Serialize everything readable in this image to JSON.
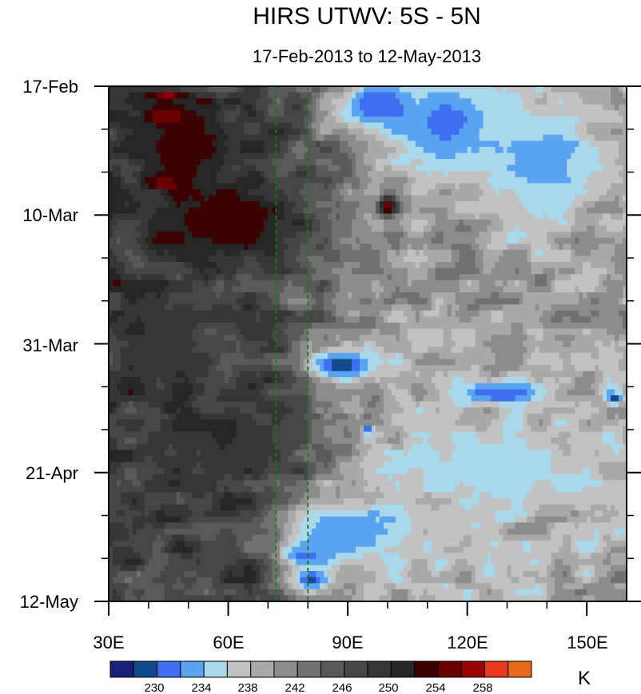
{
  "chart_data": {
    "type": "heatmap",
    "title": "HIRS UTWV: 5S - 5N",
    "subtitle": "17-Feb-2013 to 12-May-2013",
    "xlim": [
      30,
      160
    ],
    "x_ticks": [
      {
        "value": 30,
        "label": "30E"
      },
      {
        "value": 60,
        "label": "60E"
      },
      {
        "value": 90,
        "label": "90E"
      },
      {
        "value": 120,
        "label": "120E"
      },
      {
        "value": 150,
        "label": "150E"
      }
    ],
    "x_minor_ticks": [
      40,
      50,
      70,
      80,
      100,
      110,
      130,
      140
    ],
    "y_range_days": [
      0,
      84
    ],
    "y_ticks": [
      {
        "day": 0,
        "label": "17-Feb"
      },
      {
        "day": 21,
        "label": "10-Mar"
      },
      {
        "day": 42,
        "label": "31-Mar"
      },
      {
        "day": 63,
        "label": "21-Apr"
      },
      {
        "day": 84,
        "label": "12-May"
      }
    ],
    "y_minor_ticks": [
      7,
      14,
      28,
      35,
      49,
      56,
      70,
      77
    ],
    "reference_lines_lon": [
      72,
      80
    ],
    "colorbar": {
      "unit": "K",
      "colors": [
        "#1a1f7a",
        "#124a8c",
        "#3f6ff0",
        "#5aa3f0",
        "#a8d8ea",
        "#c2c2c2",
        "#a9a9a9",
        "#8c8c8c",
        "#717171",
        "#595959",
        "#464646",
        "#363636",
        "#262626",
        "#3d0000",
        "#6b0000",
        "#980000",
        "#e8381e",
        "#e66a1a"
      ],
      "labels": [
        "230",
        "234",
        "238",
        "242",
        "246",
        "250",
        "254",
        "258"
      ],
      "boundaries": [
        228,
        230,
        232,
        234,
        236,
        238,
        240,
        242,
        244,
        246,
        248,
        250,
        252,
        254,
        256,
        258,
        260
      ],
      "label_boundary_index": [
        1,
        3,
        5,
        7,
        9,
        11,
        13,
        15
      ]
    },
    "features": [
      {
        "lon": 45,
        "day": 1.5,
        "peak": 257,
        "slon": 4,
        "sday": 0.8
      },
      {
        "lon": 45,
        "day": 5,
        "peak": 258,
        "slon": 5,
        "sday": 1.3
      },
      {
        "lon": 44,
        "day": 16,
        "peak": 257,
        "slon": 4,
        "sday": 1.0
      },
      {
        "lon": 100,
        "day": 19.5,
        "peak": 257,
        "slon": 2.5,
        "sday": 1.5
      },
      {
        "lon": 45,
        "day": 25,
        "peak": 254,
        "slon": 6,
        "sday": 1.5
      },
      {
        "lon": 48,
        "day": 10,
        "peak": 254,
        "slon": 12,
        "sday": 6
      },
      {
        "lon": 60,
        "day": 22,
        "peak": 254,
        "slon": 18,
        "sday": 6
      },
      {
        "lon": 97,
        "day": 3,
        "peak": 230,
        "slon": 10,
        "sday": 4
      },
      {
        "lon": 115,
        "day": 6,
        "peak": 231,
        "slon": 15,
        "sday": 8
      },
      {
        "lon": 140,
        "day": 12,
        "peak": 233,
        "slon": 15,
        "sday": 10
      },
      {
        "lon": 88,
        "day": 45.5,
        "peak": 229,
        "slon": 9,
        "sday": 2.5
      },
      {
        "lon": 128,
        "day": 50,
        "peak": 230,
        "slon": 13,
        "sday": 2
      },
      {
        "lon": 157,
        "day": 51,
        "peak": 229,
        "slon": 2,
        "sday": 1
      },
      {
        "lon": 95,
        "day": 56,
        "peak": 229,
        "slon": 1.2,
        "sday": 0.8
      },
      {
        "lon": 79,
        "day": 76.5,
        "peak": 230,
        "slon": 6,
        "sday": 2
      },
      {
        "lon": 81,
        "day": 80.5,
        "peak": 229,
        "slon": 5,
        "sday": 2
      },
      {
        "lon": 88,
        "day": 73,
        "peak": 232,
        "slon": 16,
        "sday": 6
      },
      {
        "lon": 130,
        "day": 62,
        "peak": 234,
        "slon": 20,
        "sday": 6
      },
      {
        "lon": 62,
        "day": 58,
        "peak": 250,
        "slon": 14,
        "sday": 6
      },
      {
        "lon": 42,
        "day": 43,
        "peak": 250,
        "slon": 10,
        "sday": 6
      }
    ]
  }
}
